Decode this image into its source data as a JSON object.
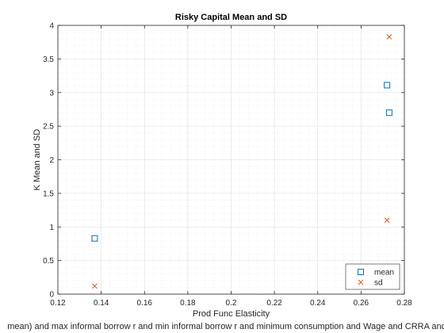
{
  "chart_data": {
    "type": "scatter",
    "title": "Risky Capital Mean and SD",
    "xlabel": "Prod Func Elasticity",
    "ylabel": "K Mean and SD",
    "footer": "mean) and max informal borrow r and min informal borrow r and minimum consumption and Wage and CRRA and D",
    "xlim": [
      0.12,
      0.28
    ],
    "ylim": [
      0,
      4
    ],
    "xticks": [
      0.12,
      0.14,
      0.16,
      0.18,
      0.2,
      0.22,
      0.24,
      0.26,
      0.28
    ],
    "yticks": [
      0,
      0.5,
      1,
      1.5,
      2,
      2.5,
      3,
      3.5,
      4
    ],
    "xtick_labels": [
      "0.12",
      "0.14",
      "0.16",
      "0.18",
      "0.2",
      "0.22",
      "0.24",
      "0.26",
      "0.28"
    ],
    "ytick_labels": [
      "0",
      "0.5",
      "1",
      "1.5",
      "2",
      "2.5",
      "3",
      "3.5",
      "4"
    ],
    "grid": true,
    "minor_grid": true,
    "legend_position": "bottom-right",
    "series": [
      {
        "name": "mean",
        "marker": "square",
        "color": "#0072BD",
        "points": [
          [
            0.137,
            0.83
          ],
          [
            0.272,
            3.11
          ],
          [
            0.273,
            2.7
          ]
        ]
      },
      {
        "name": "sd",
        "marker": "x",
        "color": "#D95319",
        "points": [
          [
            0.137,
            0.12
          ],
          [
            0.273,
            3.83
          ],
          [
            0.272,
            1.1
          ]
        ]
      }
    ]
  }
}
